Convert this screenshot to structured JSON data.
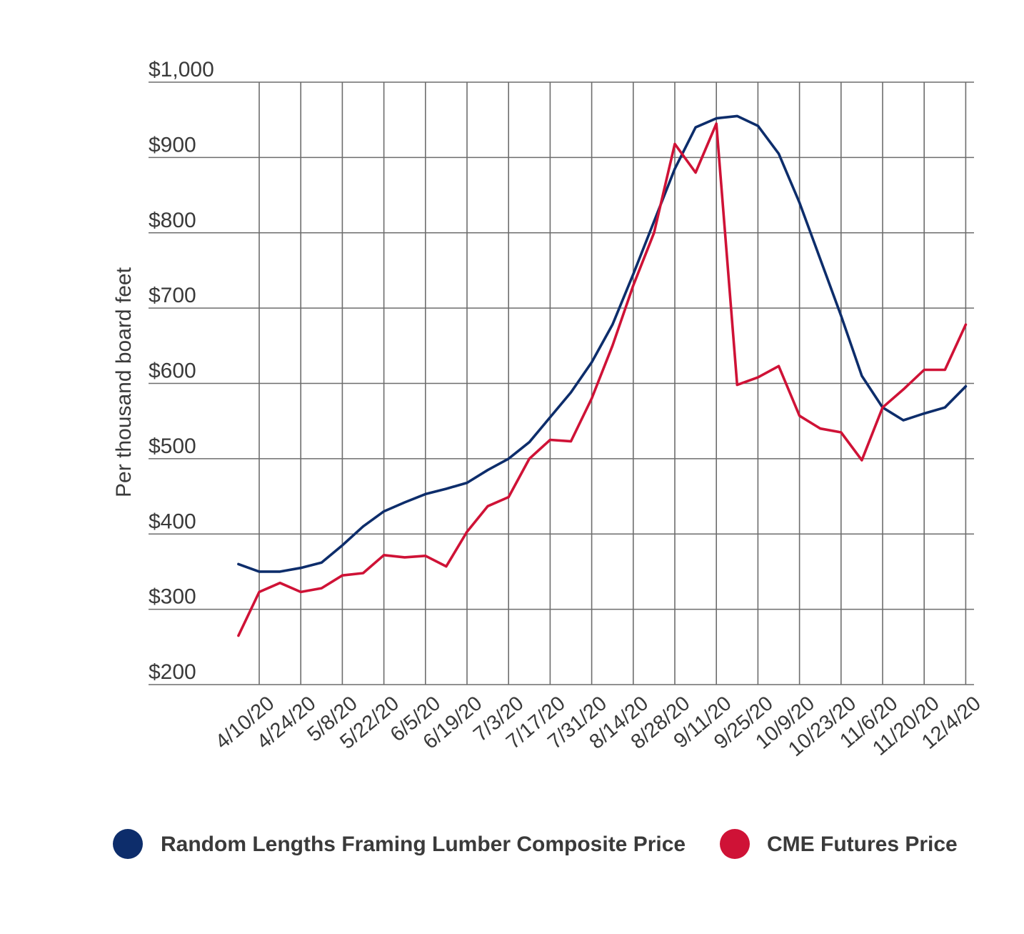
{
  "chart_data": {
    "type": "line",
    "title": "",
    "xlabel": "",
    "ylabel": "Per thousand board feet",
    "ylim": [
      200,
      1000
    ],
    "y_ticks": [
      "$200",
      "$300",
      "$400",
      "$500",
      "$600",
      "$700",
      "$800",
      "$900",
      "$1,000"
    ],
    "y_tick_values": [
      200,
      300,
      400,
      500,
      600,
      700,
      800,
      900,
      1000
    ],
    "x_tick_labels": [
      "4/10/20",
      "4/24/20",
      "5/8/20",
      "5/22/20",
      "6/5/20",
      "6/19/20",
      "7/3/20",
      "7/17/20",
      "7/31/20",
      "8/14/20",
      "8/28/20",
      "9/11/20",
      "9/25/20",
      "10/9/20",
      "10/23/20",
      "11/6/20",
      "11/20/20",
      "12/4/20"
    ],
    "x": [
      "4/3/20",
      "4/10/20",
      "4/17/20",
      "4/24/20",
      "5/1/20",
      "5/8/20",
      "5/15/20",
      "5/22/20",
      "5/29/20",
      "6/5/20",
      "6/12/20",
      "6/19/20",
      "6/26/20",
      "7/3/20",
      "7/10/20",
      "7/17/20",
      "7/24/20",
      "7/31/20",
      "8/7/20",
      "8/14/20",
      "8/21/20",
      "8/28/20",
      "9/4/20",
      "9/11/20",
      "9/18/20",
      "9/25/20",
      "10/2/20",
      "10/9/20",
      "10/16/20",
      "10/23/20",
      "10/30/20",
      "11/6/20",
      "11/13/20",
      "11/20/20",
      "11/27/20",
      "12/4/20"
    ],
    "grid": true,
    "legend_position": "bottom",
    "series": [
      {
        "name": "Random Lengths Framing Lumber Composite Price",
        "color": "#0d2d6b",
        "values": [
          360,
          350,
          350,
          355,
          362,
          385,
          410,
          430,
          442,
          453,
          460,
          468,
          485,
          500,
          522,
          555,
          588,
          628,
          678,
          745,
          815,
          885,
          940,
          952,
          955,
          942,
          905,
          840,
          765,
          690,
          610,
          568,
          551,
          560,
          568,
          596
        ]
      },
      {
        "name": "CME Futures Price",
        "color": "#cf1236",
        "values": [
          265,
          323,
          335,
          323,
          328,
          345,
          348,
          372,
          369,
          371,
          357,
          403,
          437,
          449,
          500,
          525,
          523,
          580,
          650,
          730,
          800,
          918,
          880,
          945,
          598,
          608,
          623,
          557,
          540,
          535,
          498,
          568,
          592,
          618,
          618,
          678
        ]
      }
    ]
  }
}
